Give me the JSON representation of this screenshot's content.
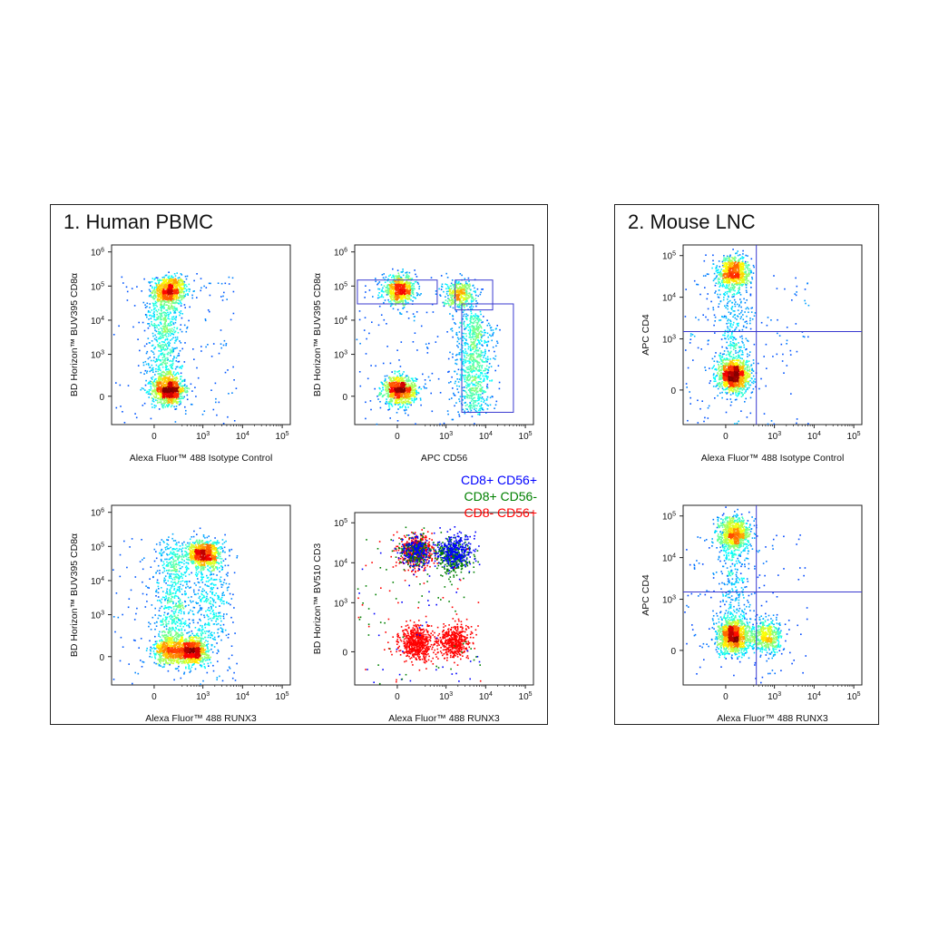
{
  "panels": [
    {
      "title": "1. Human PBMC"
    },
    {
      "title": "2. Mouse LNC"
    }
  ],
  "chart_data": [
    {
      "type": "scatter",
      "panel": "1. Human PBMC",
      "xlabel": "Alexa Fluor™ 488  Isotype Control",
      "ylabel": "BD Horizon™ BUV395 CD8α",
      "xscale": "biexponential",
      "yscale": "biexponential",
      "xticks": [
        "0",
        "10^3",
        "10^4",
        "10^5"
      ],
      "yticks": [
        "0",
        "10^3",
        "10^4",
        "10^5",
        "10^6"
      ],
      "color_mode": "density",
      "clusters": [
        {
          "x": 160,
          "y": 80000,
          "n": 700
        },
        {
          "x": 150,
          "y": 80,
          "n": 900
        },
        {
          "x": 100,
          "y": 3000,
          "n": 700,
          "spread": "vertical"
        }
      ],
      "gates": []
    },
    {
      "type": "scatter",
      "panel": "1. Human PBMC",
      "xlabel": "APC  CD56",
      "ylabel": "BD Horizon™ BUV395 CD8α",
      "xscale": "biexponential",
      "yscale": "biexponential",
      "xticks": [
        "0",
        "10^3",
        "10^4",
        "10^5"
      ],
      "yticks": [
        "0",
        "10^3",
        "10^4",
        "10^5",
        "10^6"
      ],
      "color_mode": "density",
      "clusters": [
        {
          "x": 20,
          "y": 80000,
          "n": 700
        },
        {
          "x": 20,
          "y": 80,
          "n": 900
        },
        {
          "x": 5000,
          "y": 600,
          "n": 800,
          "spread": "vertical"
        },
        {
          "x": 2000,
          "y": 60000,
          "n": 400
        }
      ],
      "gates": [
        {
          "x": [
            -600,
            600
          ],
          "y": [
            30000,
            150000
          ]
        },
        {
          "x": [
            1700,
            15000
          ],
          "y": [
            20000,
            150000
          ]
        },
        {
          "x": [
            2500,
            50000
          ],
          "y": [
            -200,
            30000
          ]
        }
      ]
    },
    {
      "type": "scatter",
      "panel": "1. Human PBMC",
      "xlabel": "Alexa Fluor™ 488  RUNX3",
      "ylabel": "BD Horizon™ BUV395 CD8α",
      "xscale": "biexponential",
      "yscale": "biexponential",
      "xticks": [
        "0",
        "10^3",
        "10^4",
        "10^5"
      ],
      "yticks": [
        "0",
        "10^3",
        "10^4",
        "10^5",
        "10^6"
      ],
      "color_mode": "density",
      "clusters": [
        {
          "x": 1000,
          "y": 60000,
          "n": 700
        },
        {
          "x": 500,
          "y": 80,
          "n": 900
        },
        {
          "x": 150,
          "y": 80,
          "n": 500
        },
        {
          "x": 200,
          "y": 5000,
          "n": 600,
          "spread": "vertical"
        },
        {
          "x": 1500,
          "y": 5000,
          "n": 400,
          "spread": "vertical"
        }
      ],
      "gates": []
    },
    {
      "type": "scatter",
      "panel": "1. Human PBMC",
      "xlabel": "Alexa Fluor™ 488  RUNX3",
      "ylabel": "BD Horizon™  BV510  CD3",
      "xscale": "biexponential",
      "yscale": "biexponential",
      "xticks": [
        "0",
        "10^3",
        "10^4",
        "10^5"
      ],
      "yticks": [
        "0",
        "10^3",
        "10^4",
        "10^5"
      ],
      "color_mode": "population",
      "legend": [
        {
          "name": "CD8+ CD56+",
          "color": "#0000ff"
        },
        {
          "name": "CD8+ CD56-",
          "color": "#008000"
        },
        {
          "name": "CD8- CD56+",
          "color": "#ff0000"
        }
      ],
      "clusters": [
        {
          "x": 200,
          "y": 20000,
          "n": 450,
          "color": "#ff0000"
        },
        {
          "x": 1500,
          "y": 15000,
          "n": 350,
          "color": "#008000"
        },
        {
          "x": 200,
          "y": 20000,
          "n": 200,
          "color": "#008000"
        },
        {
          "x": 200,
          "y": 20000,
          "n": 180,
          "color": "#0000ff"
        },
        {
          "x": 1700,
          "y": 20000,
          "n": 300,
          "color": "#0000ff"
        },
        {
          "x": 200,
          "y": 100,
          "n": 600,
          "color": "#ff0000"
        },
        {
          "x": 1500,
          "y": 120,
          "n": 450,
          "color": "#ff0000"
        }
      ],
      "gates": []
    },
    {
      "type": "scatter",
      "panel": "2. Mouse LNC",
      "xlabel": "Alexa Fluor™ 488  Isotype Control",
      "ylabel": "APC  CD4",
      "xscale": "biexponential",
      "yscale": "biexponential",
      "xticks": [
        "0",
        "10^3",
        "10^4",
        "10^5"
      ],
      "yticks": [
        "0",
        "10^3",
        "10^4",
        "10^5"
      ],
      "color_mode": "density",
      "clusters": [
        {
          "x": 80,
          "y": 40000,
          "n": 700
        },
        {
          "x": 80,
          "y": 150,
          "n": 1100
        },
        {
          "x": 80,
          "y": 2000,
          "n": 400,
          "spread": "vertical"
        }
      ],
      "gates": [],
      "quadrant": {
        "x": 350,
        "y": 1500
      }
    },
    {
      "type": "scatter",
      "panel": "2. Mouse LNC",
      "xlabel": "Alexa Fluor™ 488  RUNX3",
      "ylabel": "APC  CD4",
      "xscale": "biexponential",
      "yscale": "biexponential",
      "xticks": [
        "0",
        "10^3",
        "10^4",
        "10^5"
      ],
      "yticks": [
        "0",
        "10^3",
        "10^4",
        "10^5"
      ],
      "color_mode": "density",
      "clusters": [
        {
          "x": 80,
          "y": 40000,
          "n": 700
        },
        {
          "x": 80,
          "y": 150,
          "n": 1100
        },
        {
          "x": 600,
          "y": 150,
          "n": 500
        },
        {
          "x": 80,
          "y": 2000,
          "n": 400,
          "spread": "vertical"
        }
      ],
      "gates": [],
      "quadrant": {
        "x": 350,
        "y": 1500
      }
    }
  ]
}
